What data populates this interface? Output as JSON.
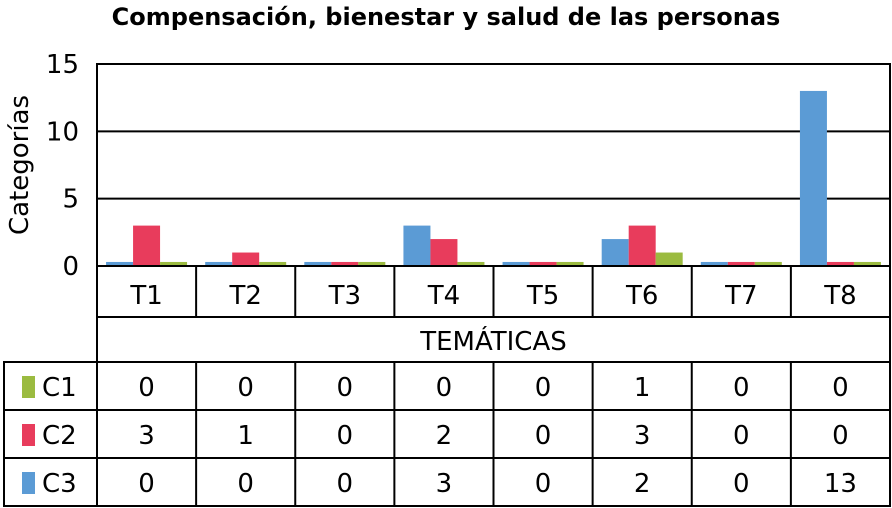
{
  "chart_data": {
    "type": "bar",
    "title": "Compensación, bienestar y salud de las personas",
    "xlabel": "TEMÁTICAS",
    "ylabel": "Categorías",
    "categories": [
      "T1",
      "T2",
      "T3",
      "T4",
      "T5",
      "T6",
      "T7",
      "T8"
    ],
    "ylim": [
      0,
      15
    ],
    "yticks": [
      0,
      5,
      10,
      15
    ],
    "grid": true,
    "legend": "data-table-rows",
    "series_order_in_groups": [
      "C3",
      "C2",
      "C1"
    ],
    "bar_zero_stub": 0.3,
    "series": [
      {
        "name": "C1",
        "color": "#9bbb40",
        "values": [
          0,
          0,
          0,
          0,
          0,
          1,
          0,
          0
        ]
      },
      {
        "name": "C2",
        "color": "#e83c5c",
        "values": [
          3,
          1,
          0,
          2,
          0,
          3,
          0,
          0
        ]
      },
      {
        "name": "C3",
        "color": "#5b9bd5",
        "values": [
          0,
          0,
          0,
          3,
          0,
          2,
          0,
          13
        ]
      }
    ],
    "table_rows": [
      {
        "name": "C1",
        "color": "#9bbb40",
        "values": [
          "0",
          "0",
          "0",
          "0",
          "0",
          "1",
          "0",
          "0"
        ]
      },
      {
        "name": "C2",
        "color": "#e83c5c",
        "values": [
          "3",
          "1",
          "0",
          "2",
          "0",
          "3",
          "0",
          "0"
        ]
      },
      {
        "name": "C3",
        "color": "#5b9bd5",
        "values": [
          "0",
          "0",
          "0",
          "3",
          "0",
          "2",
          "0",
          "13"
        ]
      }
    ]
  }
}
